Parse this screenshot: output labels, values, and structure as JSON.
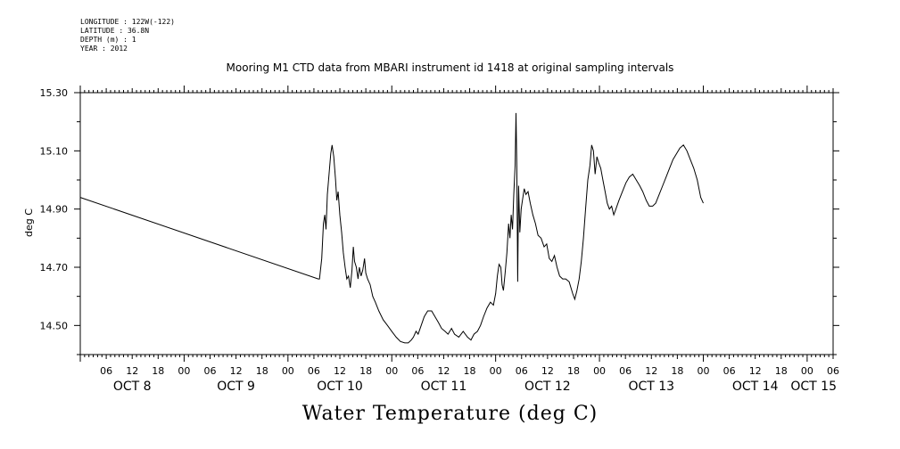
{
  "metadata": {
    "longitude": "LONGITUDE : 122W(-122)",
    "latitude": "LATITUDE : 36.8N",
    "depth": "DEPTH (m) : 1",
    "year": "YEAR : 2012"
  },
  "chart_data": {
    "type": "line",
    "title": "Mooring M1 CTD data from MBARI instrument id 1418 at original sampling intervals",
    "xlabel": "Water Temperature (deg C)",
    "ylabel": "deg C",
    "ylim": [
      14.4,
      15.3
    ],
    "yticks": [
      "14.50",
      "14.70",
      "14.90",
      "15.10",
      "15.30"
    ],
    "x_start": "OCT 8 00:00",
    "x_end": "OCT 15 06:00",
    "day_labels": [
      "OCT  8",
      "OCT  9",
      "OCT 10",
      "OCT 11",
      "OCT 12",
      "OCT 13",
      "OCT 14",
      "OCT 15"
    ],
    "hour_labels": [
      "06",
      "12",
      "18",
      "00",
      "06",
      "12",
      "18",
      "00",
      "06",
      "12",
      "18",
      "00",
      "06",
      "12",
      "18",
      "00",
      "06",
      "12",
      "18",
      "00",
      "06",
      "12",
      "18",
      "00",
      "06",
      "12",
      "18",
      "00",
      "06"
    ],
    "series": [
      {
        "points": [
          [
            0.0,
            14.94
          ],
          [
            55.0,
            14.66
          ],
          [
            55.3,
            14.66
          ],
          [
            55.8,
            14.73
          ],
          [
            56.2,
            14.85
          ],
          [
            56.5,
            14.88
          ],
          [
            56.8,
            14.83
          ],
          [
            57.1,
            14.95
          ],
          [
            57.5,
            15.02
          ],
          [
            57.9,
            15.09
          ],
          [
            58.2,
            15.12
          ],
          [
            58.6,
            15.08
          ],
          [
            59.0,
            15.0
          ],
          [
            59.3,
            14.93
          ],
          [
            59.6,
            14.96
          ],
          [
            60.0,
            14.88
          ],
          [
            60.4,
            14.82
          ],
          [
            60.8,
            14.75
          ],
          [
            61.2,
            14.7
          ],
          [
            61.6,
            14.66
          ],
          [
            62.0,
            14.67
          ],
          [
            62.4,
            14.63
          ],
          [
            62.8,
            14.69
          ],
          [
            63.1,
            14.77
          ],
          [
            63.4,
            14.72
          ],
          [
            63.8,
            14.7
          ],
          [
            64.2,
            14.66
          ],
          [
            64.5,
            14.7
          ],
          [
            64.9,
            14.67
          ],
          [
            65.3,
            14.69
          ],
          [
            65.7,
            14.73
          ],
          [
            66.0,
            14.68
          ],
          [
            66.4,
            14.66
          ],
          [
            67.0,
            14.64
          ],
          [
            67.6,
            14.6
          ],
          [
            68.2,
            14.58
          ],
          [
            69.0,
            14.55
          ],
          [
            70.0,
            14.52
          ],
          [
            71.0,
            14.5
          ],
          [
            72.0,
            14.48
          ],
          [
            73.0,
            14.46
          ],
          [
            74.0,
            14.445
          ],
          [
            75.0,
            14.44
          ],
          [
            75.8,
            14.44
          ],
          [
            76.5,
            14.45
          ],
          [
            77.0,
            14.46
          ],
          [
            77.6,
            14.48
          ],
          [
            78.1,
            14.47
          ],
          [
            78.8,
            14.5
          ],
          [
            79.5,
            14.53
          ],
          [
            80.3,
            14.55
          ],
          [
            81.2,
            14.55
          ],
          [
            82.0,
            14.53
          ],
          [
            82.8,
            14.51
          ],
          [
            83.5,
            14.49
          ],
          [
            84.3,
            14.48
          ],
          [
            85.0,
            14.47
          ],
          [
            85.8,
            14.49
          ],
          [
            86.5,
            14.47
          ],
          [
            87.5,
            14.46
          ],
          [
            88.5,
            14.48
          ],
          [
            89.5,
            14.46
          ],
          [
            90.3,
            14.45
          ],
          [
            91.0,
            14.47
          ],
          [
            91.8,
            14.48
          ],
          [
            92.5,
            14.5
          ],
          [
            93.2,
            14.53
          ],
          [
            94.0,
            14.56
          ],
          [
            94.8,
            14.58
          ],
          [
            95.5,
            14.57
          ],
          [
            96.0,
            14.61
          ],
          [
            96.4,
            14.67
          ],
          [
            96.8,
            14.71
          ],
          [
            97.2,
            14.7
          ],
          [
            97.5,
            14.64
          ],
          [
            97.8,
            14.62
          ],
          [
            98.2,
            14.68
          ],
          [
            98.6,
            14.75
          ],
          [
            99.0,
            14.85
          ],
          [
            99.3,
            14.8
          ],
          [
            99.6,
            14.88
          ],
          [
            99.9,
            14.83
          ],
          [
            100.2,
            14.95
          ],
          [
            100.5,
            15.05
          ],
          [
            100.7,
            15.23
          ],
          [
            100.9,
            15.05
          ],
          [
            101.1,
            14.65
          ],
          [
            101.3,
            14.98
          ],
          [
            101.6,
            14.82
          ],
          [
            101.9,
            14.9
          ],
          [
            102.2,
            14.93
          ],
          [
            102.6,
            14.97
          ],
          [
            103.0,
            14.95
          ],
          [
            103.5,
            14.96
          ],
          [
            104.0,
            14.92
          ],
          [
            104.6,
            14.88
          ],
          [
            105.2,
            14.85
          ],
          [
            105.8,
            14.81
          ],
          [
            106.5,
            14.8
          ],
          [
            107.2,
            14.77
          ],
          [
            107.8,
            14.78
          ],
          [
            108.4,
            14.73
          ],
          [
            109.0,
            14.72
          ],
          [
            109.6,
            14.74
          ],
          [
            110.2,
            14.7
          ],
          [
            110.8,
            14.67
          ],
          [
            111.5,
            14.66
          ],
          [
            112.2,
            14.66
          ],
          [
            113.0,
            14.65
          ],
          [
            113.8,
            14.61
          ],
          [
            114.3,
            14.59
          ],
          [
            114.8,
            14.62
          ],
          [
            115.3,
            14.66
          ],
          [
            115.8,
            14.72
          ],
          [
            116.3,
            14.8
          ],
          [
            116.8,
            14.9
          ],
          [
            117.3,
            15.0
          ],
          [
            117.8,
            15.05
          ],
          [
            118.2,
            15.12
          ],
          [
            118.6,
            15.1
          ],
          [
            119.0,
            15.02
          ],
          [
            119.4,
            15.08
          ],
          [
            119.8,
            15.06
          ],
          [
            120.3,
            15.04
          ],
          [
            120.8,
            15.0
          ],
          [
            121.3,
            14.96
          ],
          [
            121.8,
            14.92
          ],
          [
            122.3,
            14.9
          ],
          [
            122.8,
            14.91
          ],
          [
            123.3,
            14.88
          ],
          [
            123.8,
            14.9
          ],
          [
            124.5,
            14.93
          ],
          [
            125.3,
            14.96
          ],
          [
            126.1,
            14.99
          ],
          [
            126.9,
            15.01
          ],
          [
            127.7,
            15.02
          ],
          [
            128.5,
            15.0
          ],
          [
            129.3,
            14.98
          ],
          [
            130.0,
            14.96
          ],
          [
            130.8,
            14.93
          ],
          [
            131.5,
            14.91
          ],
          [
            132.3,
            14.91
          ],
          [
            133.0,
            14.92
          ],
          [
            133.8,
            14.95
          ],
          [
            134.6,
            14.98
          ],
          [
            135.4,
            15.01
          ],
          [
            136.2,
            15.04
          ],
          [
            137.0,
            15.07
          ],
          [
            137.8,
            15.09
          ],
          [
            138.6,
            15.11
          ],
          [
            139.4,
            15.12
          ],
          [
            140.2,
            15.1
          ],
          [
            141.0,
            15.07
          ],
          [
            141.8,
            15.04
          ],
          [
            142.6,
            15.0
          ],
          [
            143.4,
            14.94
          ],
          [
            144.0,
            14.92
          ]
        ]
      }
    ]
  }
}
